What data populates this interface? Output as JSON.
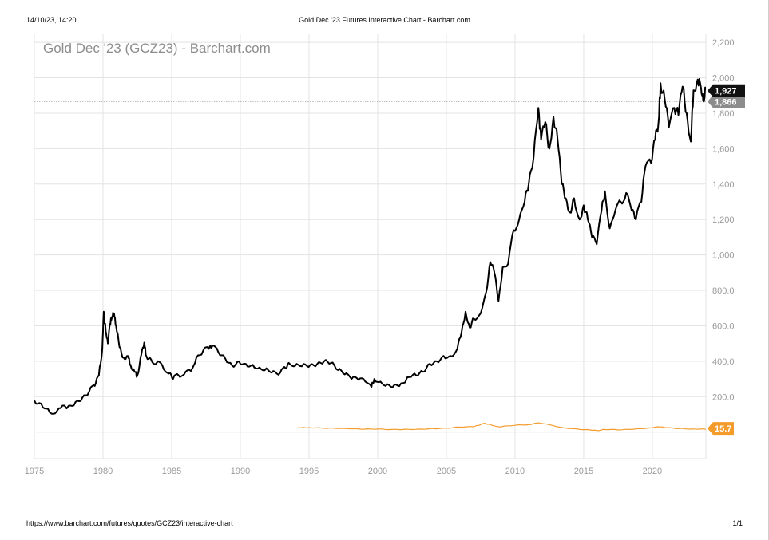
{
  "print_header": {
    "datetime": "14/10/23, 14:20",
    "title": "Gold Dec '23 Futures Interactive Chart - Barchart.com"
  },
  "print_footer": {
    "url": "https://www.barchart.com/futures/quotes/GCZ23/interactive-chart",
    "page": "1/1"
  },
  "colors": {
    "gold_line": "#000000",
    "ratio_line": "#f39c2b",
    "grid": "#e3e3e3",
    "price_tag": "#111111",
    "prev_tag": "#8c8c8c",
    "ratio_tag": "#f39c2b"
  },
  "chart_data": {
    "type": "line",
    "title": "Gold Dec '23 (GCZ23) - Barchart.com",
    "xlabel": "",
    "ylabel": "",
    "xlim": [
      1975,
      2023.9
    ],
    "ylim": [
      -150,
      2250
    ],
    "y_ticks": [
      200,
      400,
      600,
      800,
      1000,
      1200,
      1400,
      1600,
      1800,
      2000,
      2200
    ],
    "y_tick_labels": [
      "200.0",
      "400.0",
      "600.0",
      "800.0",
      "1,000",
      "1,200",
      "1,400",
      "1,600",
      "1,800",
      "2,000",
      "2,200"
    ],
    "x_ticks": [
      1975,
      1980,
      1985,
      1990,
      1995,
      2000,
      2005,
      2010,
      2015,
      2020
    ],
    "x_tick_labels": [
      "1975",
      "1980",
      "1985",
      "1990",
      "1995",
      "2000",
      "2005",
      "2010",
      "2015",
      "2020"
    ],
    "grid": true,
    "reference_line": 1866,
    "series": [
      {
        "name": "",
        "values": [
          [
            1975.0,
            178
          ],
          [
            1975.5,
            160
          ],
          [
            1976.0,
            130
          ],
          [
            1976.5,
            105
          ],
          [
            1976.9,
            135
          ],
          [
            1977.5,
            148
          ],
          [
            1978.0,
            170
          ],
          [
            1978.5,
            195
          ],
          [
            1979.0,
            230
          ],
          [
            1979.4,
            260
          ],
          [
            1979.7,
            320
          ],
          [
            1979.95,
            470
          ],
          [
            1980.05,
            680
          ],
          [
            1980.2,
            570
          ],
          [
            1980.35,
            500
          ],
          [
            1980.5,
            610
          ],
          [
            1980.65,
            650
          ],
          [
            1980.8,
            670
          ],
          [
            1980.95,
            600
          ],
          [
            1981.2,
            480
          ],
          [
            1981.5,
            420
          ],
          [
            1981.8,
            430
          ],
          [
            1982.0,
            380
          ],
          [
            1982.3,
            340
          ],
          [
            1982.5,
            320
          ],
          [
            1982.8,
            440
          ],
          [
            1983.0,
            505
          ],
          [
            1983.15,
            430
          ],
          [
            1983.5,
            410
          ],
          [
            1983.9,
            390
          ],
          [
            1984.3,
            380
          ],
          [
            1984.8,
            330
          ],
          [
            1985.1,
            300
          ],
          [
            1985.5,
            320
          ],
          [
            1985.9,
            325
          ],
          [
            1986.4,
            345
          ],
          [
            1986.8,
            420
          ],
          [
            1987.3,
            460
          ],
          [
            1987.7,
            470
          ],
          [
            1987.95,
            485
          ],
          [
            1988.4,
            450
          ],
          [
            1988.9,
            415
          ],
          [
            1989.4,
            375
          ],
          [
            1989.9,
            400
          ],
          [
            1990.4,
            385
          ],
          [
            1990.9,
            380
          ],
          [
            1991.4,
            365
          ],
          [
            1991.9,
            360
          ],
          [
            1992.4,
            345
          ],
          [
            1992.9,
            335
          ],
          [
            1993.3,
            360
          ],
          [
            1993.6,
            385
          ],
          [
            1994.1,
            385
          ],
          [
            1994.6,
            385
          ],
          [
            1995.1,
            380
          ],
          [
            1995.6,
            385
          ],
          [
            1996.1,
            400
          ],
          [
            1996.6,
            390
          ],
          [
            1997.1,
            350
          ],
          [
            1997.6,
            325
          ],
          [
            1998.1,
            300
          ],
          [
            1998.6,
            295
          ],
          [
            1999.1,
            285
          ],
          [
            1999.55,
            255
          ],
          [
            1999.75,
            300
          ],
          [
            2000.2,
            285
          ],
          [
            2000.7,
            270
          ],
          [
            2001.2,
            265
          ],
          [
            2001.7,
            275
          ],
          [
            2002.3,
            310
          ],
          [
            2002.8,
            320
          ],
          [
            2003.3,
            340
          ],
          [
            2003.8,
            385
          ],
          [
            2004.3,
            400
          ],
          [
            2004.8,
            430
          ],
          [
            2005.3,
            430
          ],
          [
            2005.8,
            470
          ],
          [
            2006.1,
            560
          ],
          [
            2006.4,
            680
          ],
          [
            2006.7,
            590
          ],
          [
            2007.0,
            640
          ],
          [
            2007.5,
            670
          ],
          [
            2007.9,
            790
          ],
          [
            2008.2,
            960
          ],
          [
            2008.5,
            900
          ],
          [
            2008.8,
            740
          ],
          [
            2009.1,
            930
          ],
          [
            2009.5,
            950
          ],
          [
            2009.9,
            1140
          ],
          [
            2010.3,
            1200
          ],
          [
            2010.7,
            1300
          ],
          [
            2011.0,
            1400
          ],
          [
            2011.35,
            1550
          ],
          [
            2011.7,
            1830
          ],
          [
            2011.9,
            1650
          ],
          [
            2012.2,
            1750
          ],
          [
            2012.5,
            1600
          ],
          [
            2012.8,
            1780
          ],
          [
            2013.1,
            1650
          ],
          [
            2013.4,
            1400
          ],
          [
            2013.7,
            1320
          ],
          [
            2014.0,
            1240
          ],
          [
            2014.3,
            1320
          ],
          [
            2014.7,
            1200
          ],
          [
            2015.0,
            1280
          ],
          [
            2015.3,
            1200
          ],
          [
            2015.6,
            1100
          ],
          [
            2015.95,
            1060
          ],
          [
            2016.3,
            1250
          ],
          [
            2016.55,
            1360
          ],
          [
            2016.9,
            1150
          ],
          [
            2017.3,
            1250
          ],
          [
            2017.7,
            1300
          ],
          [
            2018.1,
            1350
          ],
          [
            2018.5,
            1250
          ],
          [
            2018.8,
            1200
          ],
          [
            2019.2,
            1300
          ],
          [
            2019.5,
            1500
          ],
          [
            2019.9,
            1520
          ],
          [
            2020.2,
            1650
          ],
          [
            2020.45,
            1750
          ],
          [
            2020.6,
            1970
          ],
          [
            2020.9,
            1880
          ],
          [
            2021.2,
            1720
          ],
          [
            2021.6,
            1830
          ],
          [
            2021.9,
            1790
          ],
          [
            2022.2,
            1950
          ],
          [
            2022.5,
            1800
          ],
          [
            2022.8,
            1640
          ],
          [
            2023.0,
            1930
          ],
          [
            2023.3,
            1990
          ],
          [
            2023.55,
            1940
          ],
          [
            2023.7,
            1870
          ],
          [
            2023.9,
            1927
          ]
        ]
      },
      {
        "name": "",
        "values": [
          [
            1994.2,
            25
          ],
          [
            1995.0,
            25
          ],
          [
            1996.0,
            22
          ],
          [
            1997.0,
            20
          ],
          [
            1998.0,
            18
          ],
          [
            1999.0,
            16
          ],
          [
            2000.0,
            17
          ],
          [
            2001.0,
            15
          ],
          [
            2002.0,
            16
          ],
          [
            2003.0,
            17
          ],
          [
            2004.0,
            20
          ],
          [
            2005.0,
            22
          ],
          [
            2006.0,
            28
          ],
          [
            2007.0,
            30
          ],
          [
            2007.8,
            50
          ],
          [
            2008.5,
            35
          ],
          [
            2009.0,
            30
          ],
          [
            2010.0,
            38
          ],
          [
            2011.0,
            42
          ],
          [
            2011.7,
            52
          ],
          [
            2012.5,
            42
          ],
          [
            2013.5,
            25
          ],
          [
            2014.5,
            18
          ],
          [
            2015.5,
            12
          ],
          [
            2016.0,
            8
          ],
          [
            2016.5,
            15
          ],
          [
            2017.5,
            12
          ],
          [
            2018.5,
            15
          ],
          [
            2019.5,
            20
          ],
          [
            2020.4,
            30
          ],
          [
            2021.0,
            25
          ],
          [
            2022.0,
            20
          ],
          [
            2023.0,
            18
          ],
          [
            2023.9,
            15.7
          ]
        ]
      }
    ],
    "last_price_label": "1,927",
    "prev_price_label": "1,866",
    "ratio_label": "15.7"
  }
}
